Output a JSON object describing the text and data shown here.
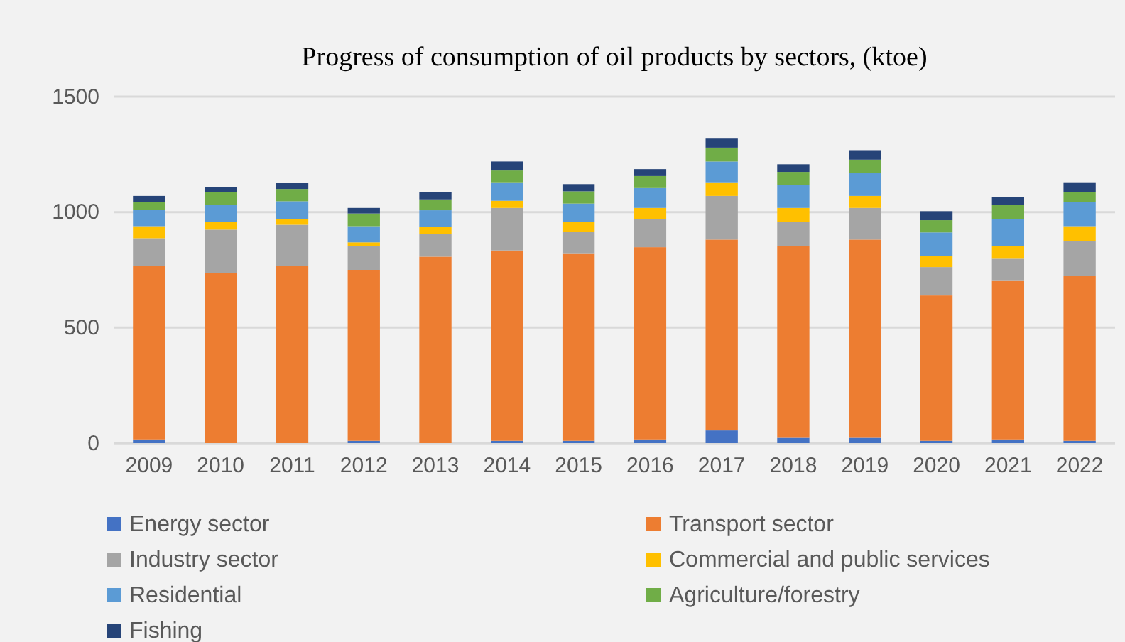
{
  "chart_data": {
    "type": "bar",
    "stacked": true,
    "title": "Progress of consumption of oil products by sectors, (ktoe)",
    "categories": [
      "2009",
      "2010",
      "2011",
      "2012",
      "2013",
      "2014",
      "2015",
      "2016",
      "2017",
      "2018",
      "2019",
      "2020",
      "2021",
      "2022"
    ],
    "series": [
      {
        "name": "Energy sector",
        "color": "#4472c4",
        "values": [
          16,
          null,
          null,
          10,
          null,
          10,
          10,
          16,
          55,
          23,
          23,
          10,
          16,
          10
        ]
      },
      {
        "name": "Transport sector",
        "color": "#ed7d31",
        "values": [
          752,
          736,
          766,
          740,
          807,
          824,
          812,
          832,
          826,
          829,
          858,
          629,
          689,
          713
        ]
      },
      {
        "name": "Industry sector",
        "color": "#a5a5a5",
        "values": [
          119,
          188,
          179,
          102,
          99,
          184,
          92,
          123,
          189,
          107,
          137,
          123,
          96,
          152
        ]
      },
      {
        "name": "Commercial and public services",
        "color": "#ffc000",
        "values": [
          52,
          33,
          24,
          17,
          31,
          31,
          45,
          47,
          59,
          59,
          52,
          47,
          53,
          64
        ]
      },
      {
        "name": "Residential",
        "color": "#5b9bd5",
        "values": [
          71,
          74,
          78,
          70,
          71,
          80,
          78,
          86,
          90,
          99,
          98,
          103,
          117,
          106
        ]
      },
      {
        "name": "Agriculture/forestry",
        "color": "#70ad47",
        "values": [
          33,
          55,
          53,
          55,
          47,
          51,
          53,
          52,
          60,
          57,
          59,
          53,
          60,
          43
        ]
      },
      {
        "name": "Fishing",
        "color": "#264478",
        "values": [
          27,
          23,
          27,
          24,
          33,
          39,
          31,
          30,
          39,
          33,
          41,
          39,
          33,
          41
        ]
      }
    ],
    "ylim": [
      0,
      1500
    ],
    "yticks": [
      0,
      500,
      1000,
      1500
    ],
    "grid": "y",
    "legend": "bottom"
  }
}
